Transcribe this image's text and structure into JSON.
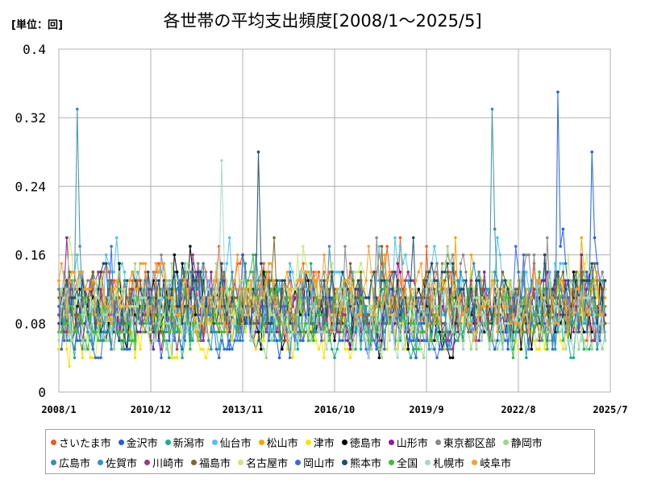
{
  "unit_label": "[単位：回]",
  "chart_data": {
    "type": "line",
    "title": "各世帯の平均支出頻度[2008/1～2025/5]",
    "xlabel": "",
    "ylabel": "",
    "x_range": [
      "2008-01",
      "2025-07"
    ],
    "x_ticks": [
      "2008/1",
      "2010/12",
      "2013/11",
      "2016/10",
      "2019/9",
      "2022/8",
      "2025/7"
    ],
    "ylim": [
      0,
      0.4
    ],
    "y_ticks": [
      "0",
      "0.08",
      "0.16",
      "0.24",
      "0.32",
      "0.4"
    ],
    "grid": true,
    "legend_position": "bottom",
    "notable_peaks": [
      {
        "series": "広島市",
        "x": "2008-08",
        "y": 0.33
      },
      {
        "series": "熊本市",
        "x": "2014-05",
        "y": 0.28
      },
      {
        "series": "札幌市",
        "x": "2013-03",
        "y": 0.27
      },
      {
        "series": "広島市",
        "x": "2021-10",
        "y": 0.33
      },
      {
        "series": "金沢市",
        "x": "2023-11",
        "y": 0.35
      },
      {
        "series": "金沢市",
        "x": "2024-12",
        "y": 0.28
      }
    ],
    "series": [
      {
        "name": "さいたま市",
        "color": "#f05a22"
      },
      {
        "name": "金沢市",
        "color": "#1f5fe0"
      },
      {
        "name": "新潟市",
        "color": "#18b08a"
      },
      {
        "name": "仙台市",
        "color": "#4ec3f0"
      },
      {
        "name": "松山市",
        "color": "#f0a800"
      },
      {
        "name": "津市",
        "color": "#f5e600"
      },
      {
        "name": "徳島市",
        "color": "#000000"
      },
      {
        "name": "山形市",
        "color": "#8a1a9e"
      },
      {
        "name": "東京都区部",
        "color": "#8a8a8a"
      },
      {
        "name": "静岡市",
        "color": "#9ad88a"
      },
      {
        "name": "広島市",
        "color": "#3a8fa8"
      },
      {
        "name": "佐賀市",
        "color": "#2b95c8"
      },
      {
        "name": "川崎市",
        "color": "#9a3a78"
      },
      {
        "name": "福島市",
        "color": "#7a6a28"
      },
      {
        "name": "名古屋市",
        "color": "#c8e878"
      },
      {
        "name": "岡山市",
        "color": "#3a6ae0"
      },
      {
        "name": "熊本市",
        "color": "#1e4e6e"
      },
      {
        "name": "全国",
        "color": "#38c038"
      },
      {
        "name": "札幌市",
        "color": "#a8d8c8"
      },
      {
        "name": "岐阜市",
        "color": "#f5a030"
      }
    ]
  }
}
